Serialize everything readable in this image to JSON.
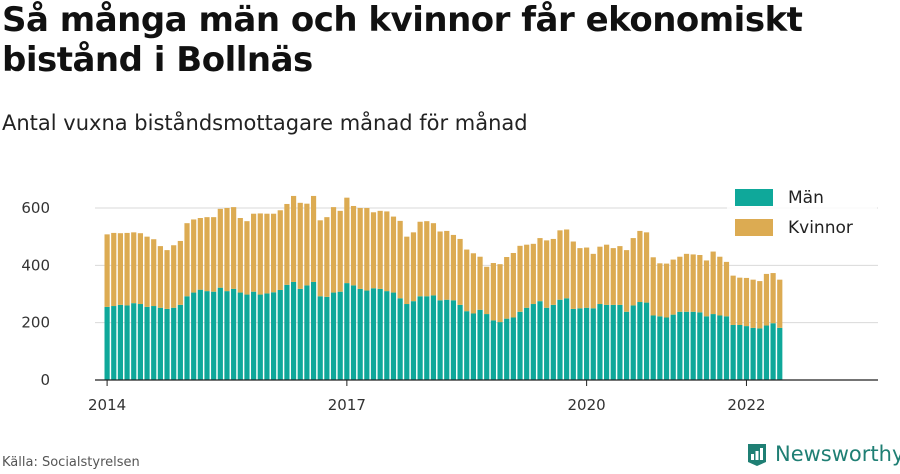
{
  "title": "Så många män och kvinnor får ekonomiskt bistånd i Bollnäs",
  "subtitle": "Antal vuxna biståndsmottagare månad för månad",
  "source": "Källa: Socialstyrelsen",
  "brand": "Newsworthy",
  "colors": {
    "man": "#0fa89a",
    "kvinnor": "#dcab52",
    "grid": "#d9d9d9",
    "brand": "#1f7f74"
  },
  "chart_data": {
    "type": "bar",
    "stacked": true,
    "x_start": "2014-01",
    "x_frequency": "monthly",
    "x_ticks": [
      "2014",
      "2017",
      "2020",
      "2022"
    ],
    "y_ticks": [
      0,
      200,
      400,
      600
    ],
    "ylim": [
      0,
      680
    ],
    "grid": true,
    "legend_position": "top-right",
    "series": [
      {
        "name": "Män",
        "values": [
          255,
          258,
          262,
          260,
          268,
          265,
          255,
          258,
          252,
          248,
          252,
          262,
          292,
          305,
          315,
          310,
          308,
          322,
          310,
          318,
          305,
          298,
          308,
          298,
          302,
          306,
          314,
          332,
          342,
          318,
          330,
          342,
          292,
          290,
          305,
          308,
          338,
          330,
          318,
          312,
          320,
          318,
          310,
          305,
          285,
          265,
          275,
          292,
          292,
          295,
          278,
          280,
          278,
          262,
          240,
          232,
          245,
          230,
          208,
          202,
          214,
          218,
          238,
          252,
          265,
          275,
          252,
          262,
          280,
          285,
          248,
          250,
          252,
          250,
          265,
          262,
          262,
          262,
          238,
          260,
          272,
          270,
          225,
          222,
          218,
          228,
          238,
          238,
          238,
          236,
          222,
          230,
          225,
          222,
          192,
          192,
          188,
          182,
          180,
          190,
          198,
          182
        ]
      },
      {
        "name": "Kvinnor",
        "values": [
          253,
          255,
          250,
          253,
          247,
          247,
          245,
          233,
          215,
          205,
          218,
          223,
          255,
          255,
          250,
          258,
          260,
          275,
          290,
          285,
          260,
          256,
          272,
          283,
          278,
          274,
          278,
          282,
          300,
          300,
          285,
          300,
          265,
          278,
          298,
          282,
          298,
          277,
          282,
          288,
          265,
          272,
          278,
          265,
          270,
          235,
          240,
          260,
          262,
          252,
          240,
          240,
          228,
          230,
          215,
          210,
          185,
          165,
          200,
          202,
          215,
          225,
          230,
          220,
          210,
          220,
          235,
          230,
          242,
          240,
          235,
          210,
          210,
          190,
          200,
          210,
          198,
          205,
          215,
          235,
          248,
          245,
          203,
          185,
          188,
          192,
          192,
          202,
          200,
          200,
          195,
          218,
          205,
          190,
          172,
          165,
          168,
          168,
          165,
          180,
          175,
          168
        ]
      }
    ]
  }
}
